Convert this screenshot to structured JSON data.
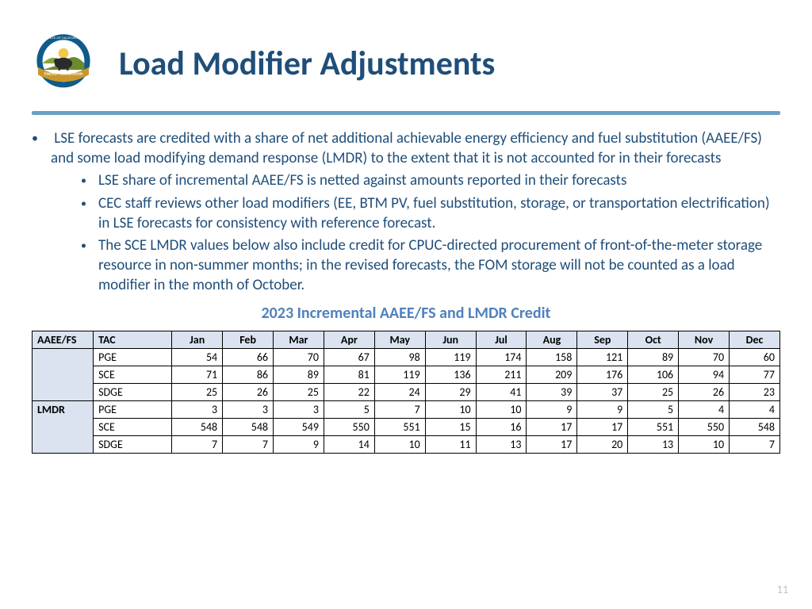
{
  "title": "Load Modifier Adjustments",
  "logo": {
    "outer_ring_color": "#0f5b8a",
    "banner_color": "#c9972e",
    "banner_text": "ENERGY COMMISSION",
    "ring_text_top": "STATE OF CALIFORNIA",
    "inner_bg": "#ffffff",
    "hill_left": "#8aa63f",
    "hill_right": "#6b8b2f",
    "sun_color": "#f2c94c",
    "bear_color": "#2b2b2b"
  },
  "bullets": {
    "main": "LSE forecasts are credited with a share of net additional achievable energy efficiency and fuel substitution (AAEE/FS) and some load modifying demand response (LMDR) to the extent that it is not accounted for in their forecasts",
    "sub": [
      "LSE share of incremental AAEE/FS is netted against amounts reported in their forecasts",
      "CEC staff reviews other load modifiers (EE, BTM PV, fuel substitution, storage, or transportation electrification) in LSE forecasts for consistency with reference forecast.",
      "The SCE LMDR values below also include credit for CPUC-directed procurement of front-of-the-meter storage resource in non-summer months; in the revised forecasts, the FOM storage will not be counted as a load modifier in the month of October."
    ]
  },
  "table": {
    "title": "2023 Incremental AAEE/FS and LMDR Credit",
    "months": [
      "Jan",
      "Feb",
      "Mar",
      "Apr",
      "May",
      "Jun",
      "Jul",
      "Aug",
      "Sep",
      "Oct",
      "Nov",
      "Dec"
    ],
    "corner1": "AAEE/FS",
    "corner2": "LMDR",
    "tac_label": "TAC",
    "groups": [
      {
        "name": "AAEE/FS",
        "rows": [
          {
            "tac": "PGE",
            "vals": [
              54,
              66,
              70,
              67,
              98,
              119,
              174,
              158,
              121,
              89,
              70,
              60
            ]
          },
          {
            "tac": "SCE",
            "vals": [
              71,
              86,
              89,
              81,
              119,
              136,
              211,
              209,
              176,
              106,
              94,
              77
            ]
          },
          {
            "tac": "SDGE",
            "vals": [
              25,
              26,
              25,
              22,
              24,
              29,
              41,
              39,
              37,
              25,
              26,
              23
            ]
          }
        ]
      },
      {
        "name": "LMDR",
        "rows": [
          {
            "tac": "PGE",
            "vals": [
              3,
              3,
              3,
              5,
              7,
              10,
              10,
              9,
              9,
              5,
              4,
              4
            ]
          },
          {
            "tac": "SCE",
            "vals": [
              548,
              548,
              549,
              550,
              551,
              15,
              16,
              17,
              17,
              551,
              550,
              548
            ]
          },
          {
            "tac": "SDGE",
            "vals": [
              7,
              7,
              9,
              14,
              10,
              11,
              13,
              17,
              20,
              13,
              10,
              7
            ]
          }
        ]
      }
    ]
  },
  "page_number": "11",
  "colors": {
    "heading": "#1f4e79",
    "accent": "#4f81bd",
    "divider": "#6b9fc4",
    "table_header_bg": "#dae3ef",
    "text": "#000000",
    "page_num": "#bfbfbf",
    "background": "#ffffff"
  },
  "typography": {
    "title_fontsize": 42,
    "body_fontsize": 19,
    "table_fontsize": 14,
    "table_title_fontsize": 20,
    "font_family": "Calibri"
  }
}
